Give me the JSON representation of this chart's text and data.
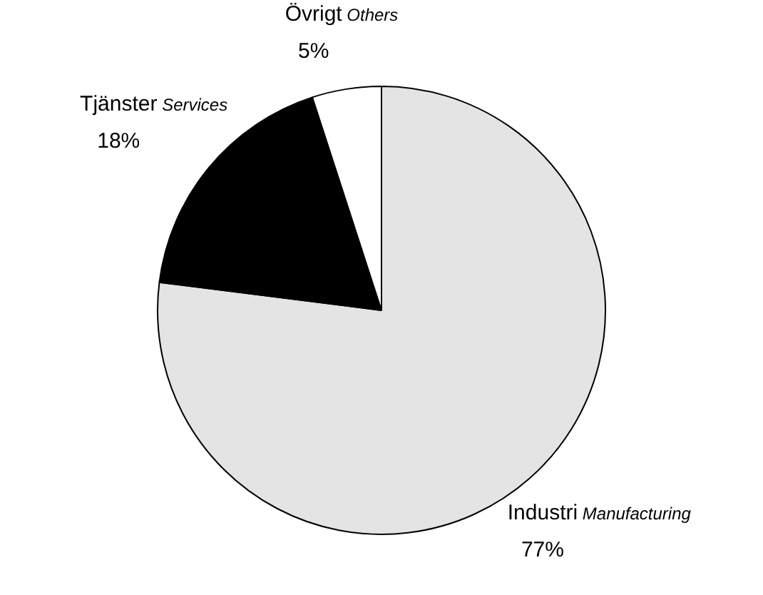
{
  "chart_data": {
    "type": "pie",
    "categories": [
      "Industri Manufacturing",
      "Tjänster Services",
      "Övrigt Others"
    ],
    "values": [
      77,
      18,
      5
    ],
    "colors": [
      "#e4e4e4",
      "#000000",
      "#ffffff"
    ],
    "value_labels": [
      "77%",
      "18%",
      "5%"
    ]
  }
}
